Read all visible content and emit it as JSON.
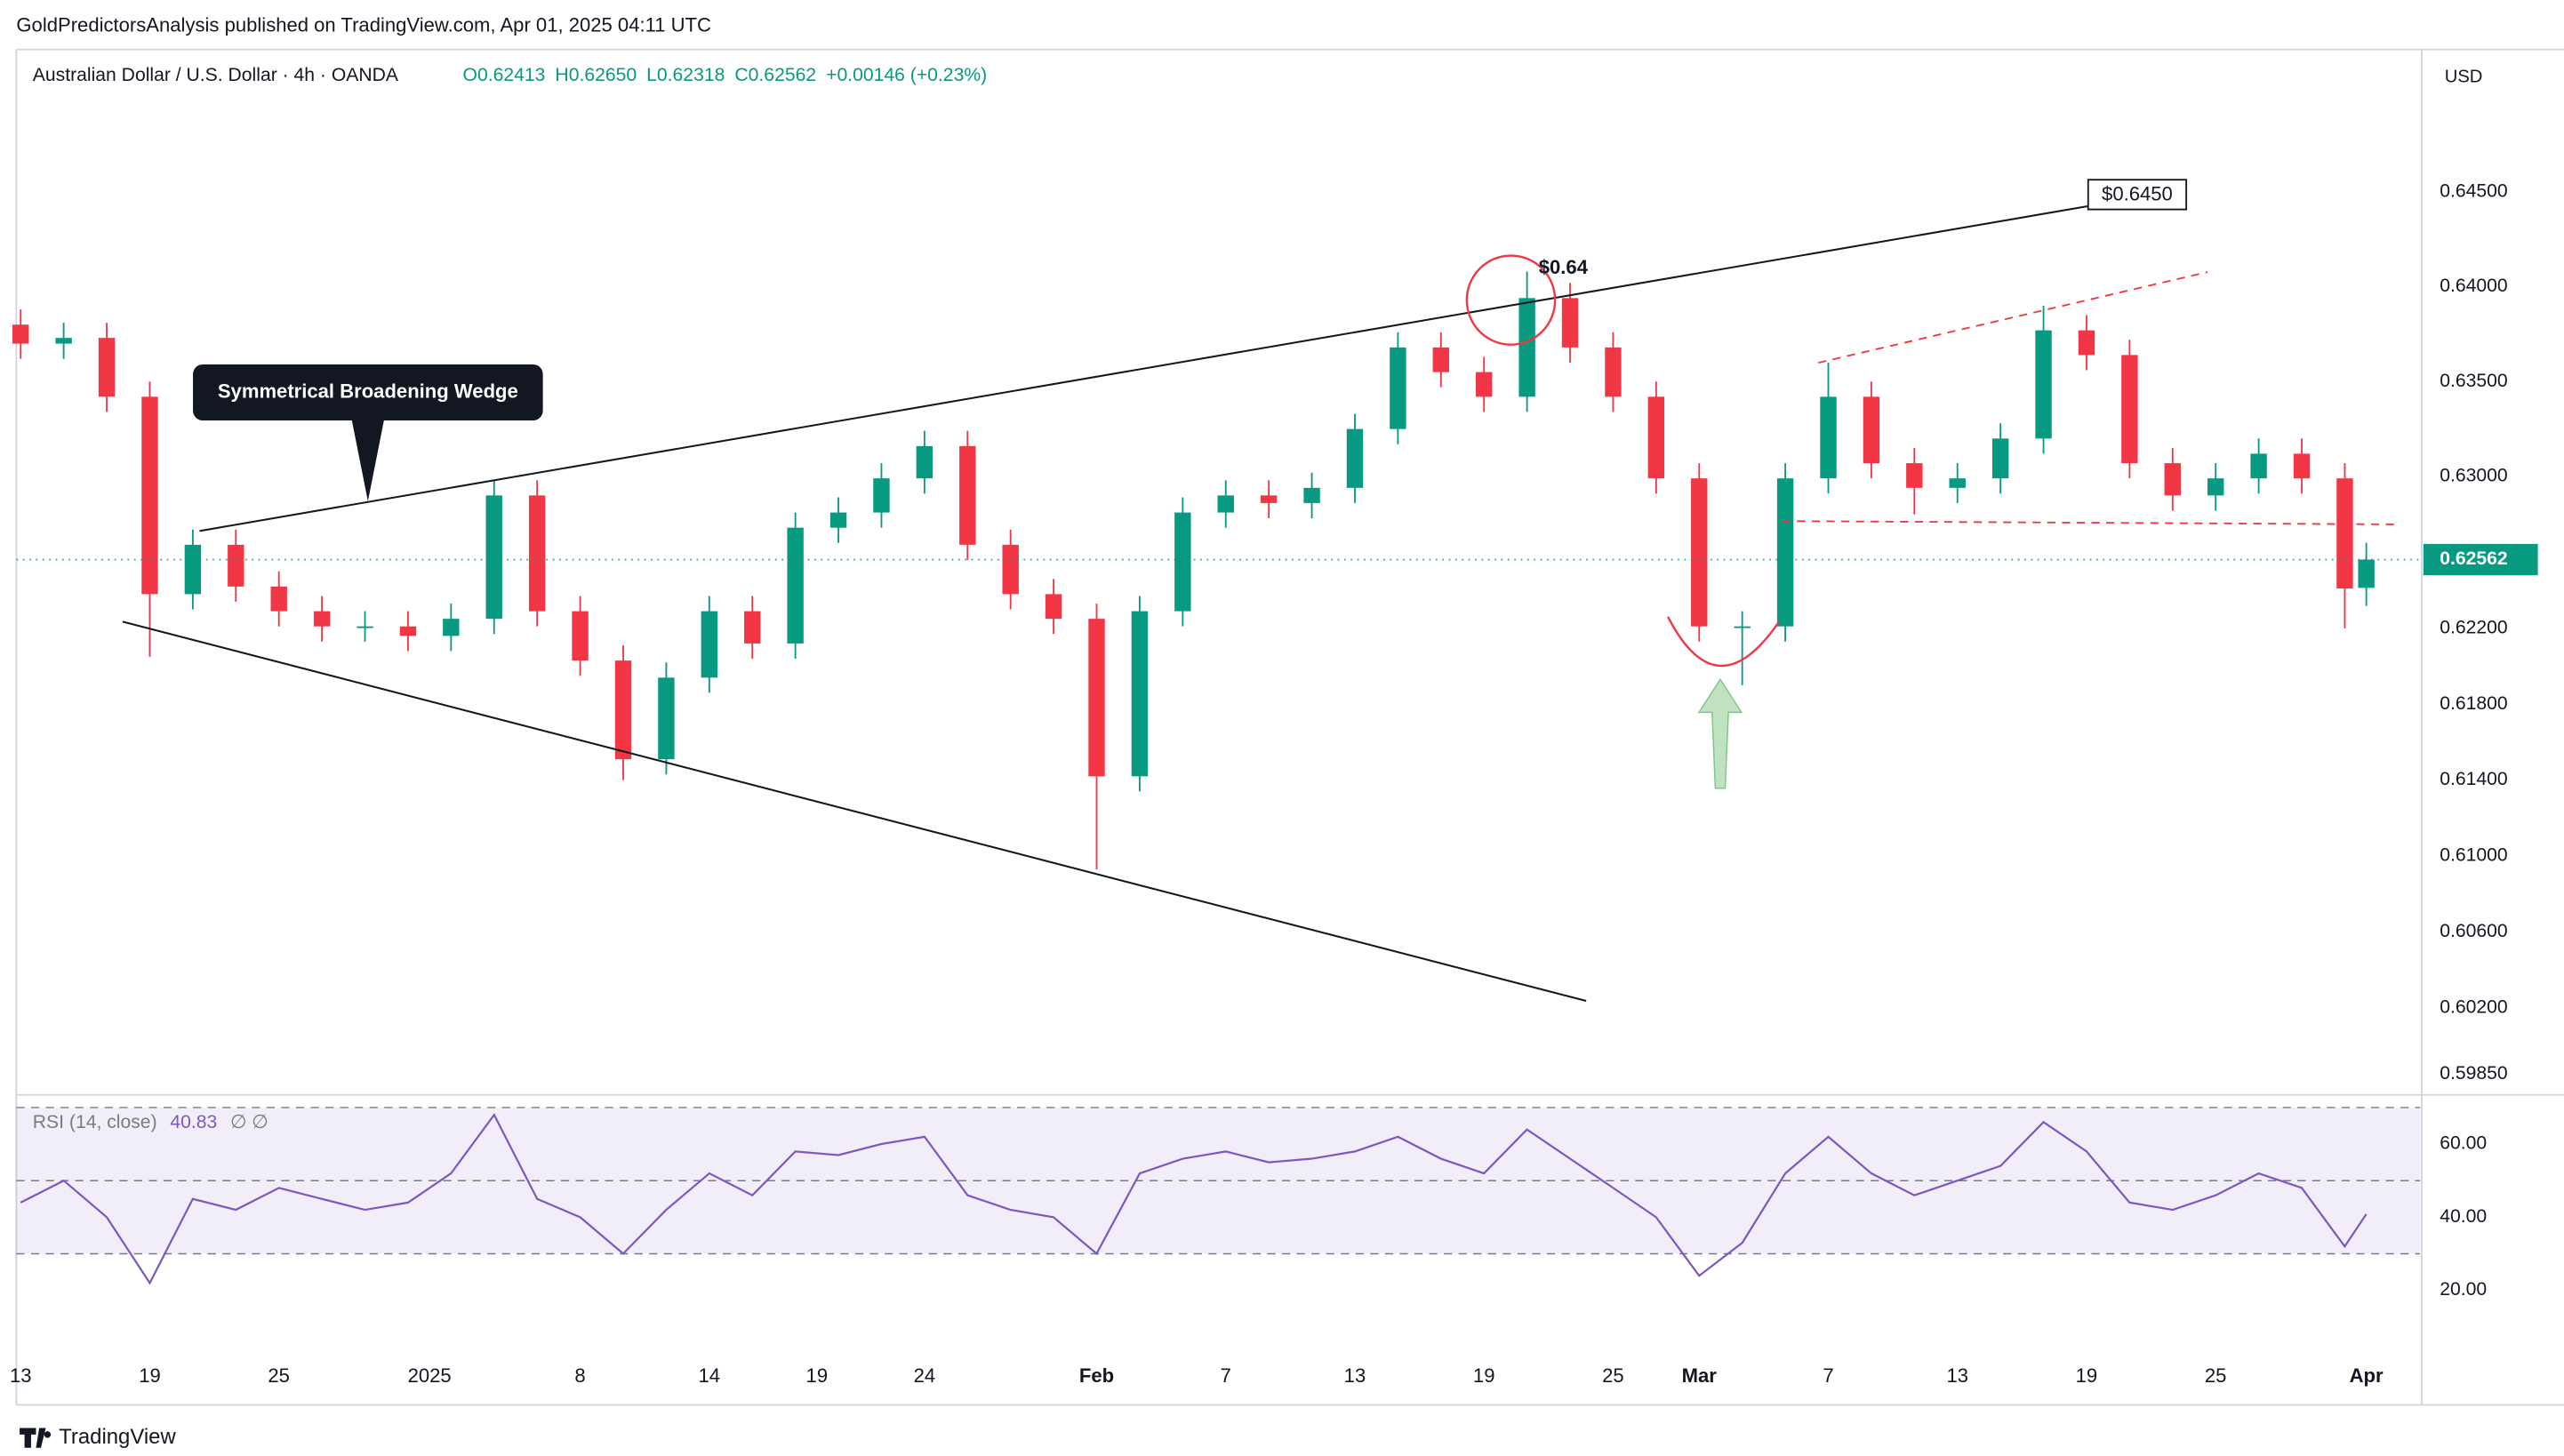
{
  "chart_data": {
    "type": "candlestick",
    "header": "GoldPredictorsAnalysis published on TradingView.com, Apr 01, 2025 04:11 UTC",
    "title": "Australian Dollar / U.S. Dollar · 4h · OANDA",
    "quote": [
      "O0.62413",
      "H0.62650",
      "L0.62318",
      "C0.62562",
      "+0.00146 (+0.23%)"
    ],
    "currency": "USD",
    "brand": "TradingView",
    "annotations": [
      "Symmetrical Broadening Wedge",
      "$0.64",
      "$0.6450"
    ],
    "up_color": "#089981",
    "down_color": "#f23645",
    "x": [
      0,
      2,
      4,
      6,
      8,
      10,
      12,
      14,
      16,
      18,
      20,
      22,
      24,
      26,
      28,
      30,
      32,
      34,
      36,
      38,
      40,
      42,
      44,
      46,
      48,
      50,
      52,
      54,
      56,
      58,
      60,
      62,
      64,
      66,
      68,
      70,
      72,
      74,
      76,
      78,
      80,
      82,
      84,
      86,
      88,
      90,
      92,
      94,
      96,
      98,
      100,
      102,
      104,
      106,
      108,
      109
    ],
    "open": [
      0.638,
      0.637,
      0.6373,
      0.6342,
      0.6238,
      0.6264,
      0.6242,
      0.6229,
      0.6221,
      0.6221,
      0.6216,
      0.6225,
      0.629,
      0.6229,
      0.6203,
      0.6151,
      0.6194,
      0.6229,
      0.6212,
      0.6273,
      0.6281,
      0.6299,
      0.6316,
      0.6264,
      0.6238,
      0.6225,
      0.6142,
      0.6229,
      0.6281,
      0.629,
      0.6286,
      0.6294,
      0.6325,
      0.6368,
      0.6355,
      0.6342,
      0.6394,
      0.6368,
      0.6342,
      0.6299,
      0.6221,
      0.6221,
      0.6299,
      0.6342,
      0.6307,
      0.6294,
      0.6299,
      0.632,
      0.6377,
      0.6364,
      0.6307,
      0.629,
      0.6299,
      0.6312,
      0.6299,
      0.62413
    ],
    "high": [
      0.6388,
      0.6381,
      0.6381,
      0.635,
      0.6272,
      0.6272,
      0.625,
      0.6237,
      0.6229,
      0.6229,
      0.6233,
      0.6298,
      0.6298,
      0.6237,
      0.6211,
      0.6202,
      0.6237,
      0.6237,
      0.6281,
      0.6289,
      0.6307,
      0.6324,
      0.6324,
      0.6272,
      0.6246,
      0.6233,
      0.6237,
      0.6289,
      0.6298,
      0.6298,
      0.6302,
      0.6333,
      0.6376,
      0.6376,
      0.6363,
      0.6408,
      0.6402,
      0.6376,
      0.635,
      0.6307,
      0.6229,
      0.6307,
      0.636,
      0.635,
      0.6315,
      0.6307,
      0.6328,
      0.639,
      0.6385,
      0.6372,
      0.6315,
      0.6307,
      0.632,
      0.632,
      0.6307,
      0.6265
    ],
    "low": [
      0.6362,
      0.6362,
      0.6334,
      0.6205,
      0.623,
      0.6234,
      0.6221,
      0.6213,
      0.6213,
      0.6208,
      0.6208,
      0.6217,
      0.6221,
      0.6195,
      0.614,
      0.6143,
      0.6186,
      0.6204,
      0.6204,
      0.6265,
      0.6273,
      0.6291,
      0.6256,
      0.623,
      0.6217,
      0.6093,
      0.6134,
      0.6221,
      0.6273,
      0.6278,
      0.6278,
      0.6286,
      0.6317,
      0.6347,
      0.6334,
      0.6334,
      0.636,
      0.6334,
      0.6291,
      0.6213,
      0.619,
      0.6213,
      0.6291,
      0.6299,
      0.628,
      0.6286,
      0.6291,
      0.6312,
      0.6356,
      0.6299,
      0.6282,
      0.6282,
      0.6291,
      0.6291,
      0.622,
      0.62318
    ],
    "close": [
      0.637,
      0.6373,
      0.6342,
      0.6238,
      0.6264,
      0.6242,
      0.6229,
      0.6221,
      0.6221,
      0.6216,
      0.6225,
      0.629,
      0.6229,
      0.6203,
      0.6151,
      0.6194,
      0.6229,
      0.6212,
      0.6273,
      0.6281,
      0.6299,
      0.6316,
      0.6264,
      0.6238,
      0.6225,
      0.6142,
      0.6229,
      0.6281,
      0.629,
      0.6286,
      0.6294,
      0.6325,
      0.6368,
      0.6355,
      0.6342,
      0.6394,
      0.6368,
      0.6342,
      0.6299,
      0.6221,
      0.6221,
      0.6299,
      0.6342,
      0.6307,
      0.6294,
      0.6299,
      0.632,
      0.6377,
      0.6364,
      0.6307,
      0.629,
      0.6299,
      0.6312,
      0.6299,
      0.6241,
      0.62562
    ],
    "xlim": [
      -0.2,
      111.5
    ],
    "xticks": [
      {
        "value": 0,
        "label": "13"
      },
      {
        "value": 6,
        "label": "19"
      },
      {
        "value": 12,
        "label": "25"
      },
      {
        "value": 19,
        "label": "2025"
      },
      {
        "value": 26,
        "label": "8"
      },
      {
        "value": 32,
        "label": "14"
      },
      {
        "value": 37,
        "label": "19"
      },
      {
        "value": 42,
        "label": "24"
      },
      {
        "value": 50,
        "label": "Feb"
      },
      {
        "value": 56,
        "label": "7"
      },
      {
        "value": 62,
        "label": "13"
      },
      {
        "value": 68,
        "label": "19"
      },
      {
        "value": 74,
        "label": "25"
      },
      {
        "value": 78,
        "label": "Mar"
      },
      {
        "value": 84,
        "label": "7"
      },
      {
        "value": 90,
        "label": "13"
      },
      {
        "value": 96,
        "label": "19"
      },
      {
        "value": 102,
        "label": "25"
      },
      {
        "value": 109,
        "label": "Apr"
      }
    ],
    "ylim": [
      0.5975,
      0.6525
    ],
    "yticks": [
      {
        "value": 0.645,
        "label": "0.64500"
      },
      {
        "value": 0.64,
        "label": "0.64000"
      },
      {
        "value": 0.635,
        "label": "0.63500"
      },
      {
        "value": 0.63,
        "label": "0.63000"
      },
      {
        "value": 0.622,
        "label": "0.62200"
      },
      {
        "value": 0.618,
        "label": "0.61800"
      },
      {
        "value": 0.614,
        "label": "0.61400"
      },
      {
        "value": 0.61,
        "label": "0.61000"
      },
      {
        "value": 0.606,
        "label": "0.60600"
      },
      {
        "value": 0.602,
        "label": "0.60200"
      },
      {
        "value": 0.5985,
        "label": "0.59850"
      }
    ],
    "rsi": {
      "name": "RSI (14, close)",
      "inputs": "∅ ∅",
      "color": "#7e57c2",
      "values": [
        44,
        50,
        40,
        22,
        45,
        42,
        48,
        45,
        42,
        44,
        52,
        68,
        45,
        40,
        30,
        42,
        52,
        46,
        58,
        57,
        60,
        62,
        46,
        42,
        40,
        30,
        52,
        56,
        58,
        55,
        56,
        58,
        62,
        56,
        52,
        64,
        56,
        48,
        40,
        24,
        33,
        52,
        62,
        52,
        46,
        50,
        54,
        66,
        58,
        44,
        42,
        46,
        52,
        48,
        32,
        40.83
      ],
      "ylim": [
        4,
        73
      ],
      "yticks": [
        {
          "value": 60,
          "label": "60.00"
        },
        {
          "value": 40,
          "label": "40.00"
        },
        {
          "value": 20,
          "label": "20.00"
        }
      ],
      "bands": [
        70,
        50,
        30
      ]
    }
  }
}
